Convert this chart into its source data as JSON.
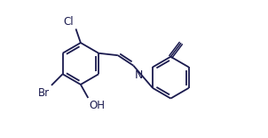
{
  "bg_color": "#ffffff",
  "line_color": "#1a1a4e",
  "line_width": 1.3,
  "font_size": 8.5,
  "font_color": "#1a1a4e",
  "xlim": [
    0,
    10
  ],
  "ylim": [
    0,
    5
  ],
  "figsize": [
    3.02,
    1.55
  ],
  "dpi": 100
}
